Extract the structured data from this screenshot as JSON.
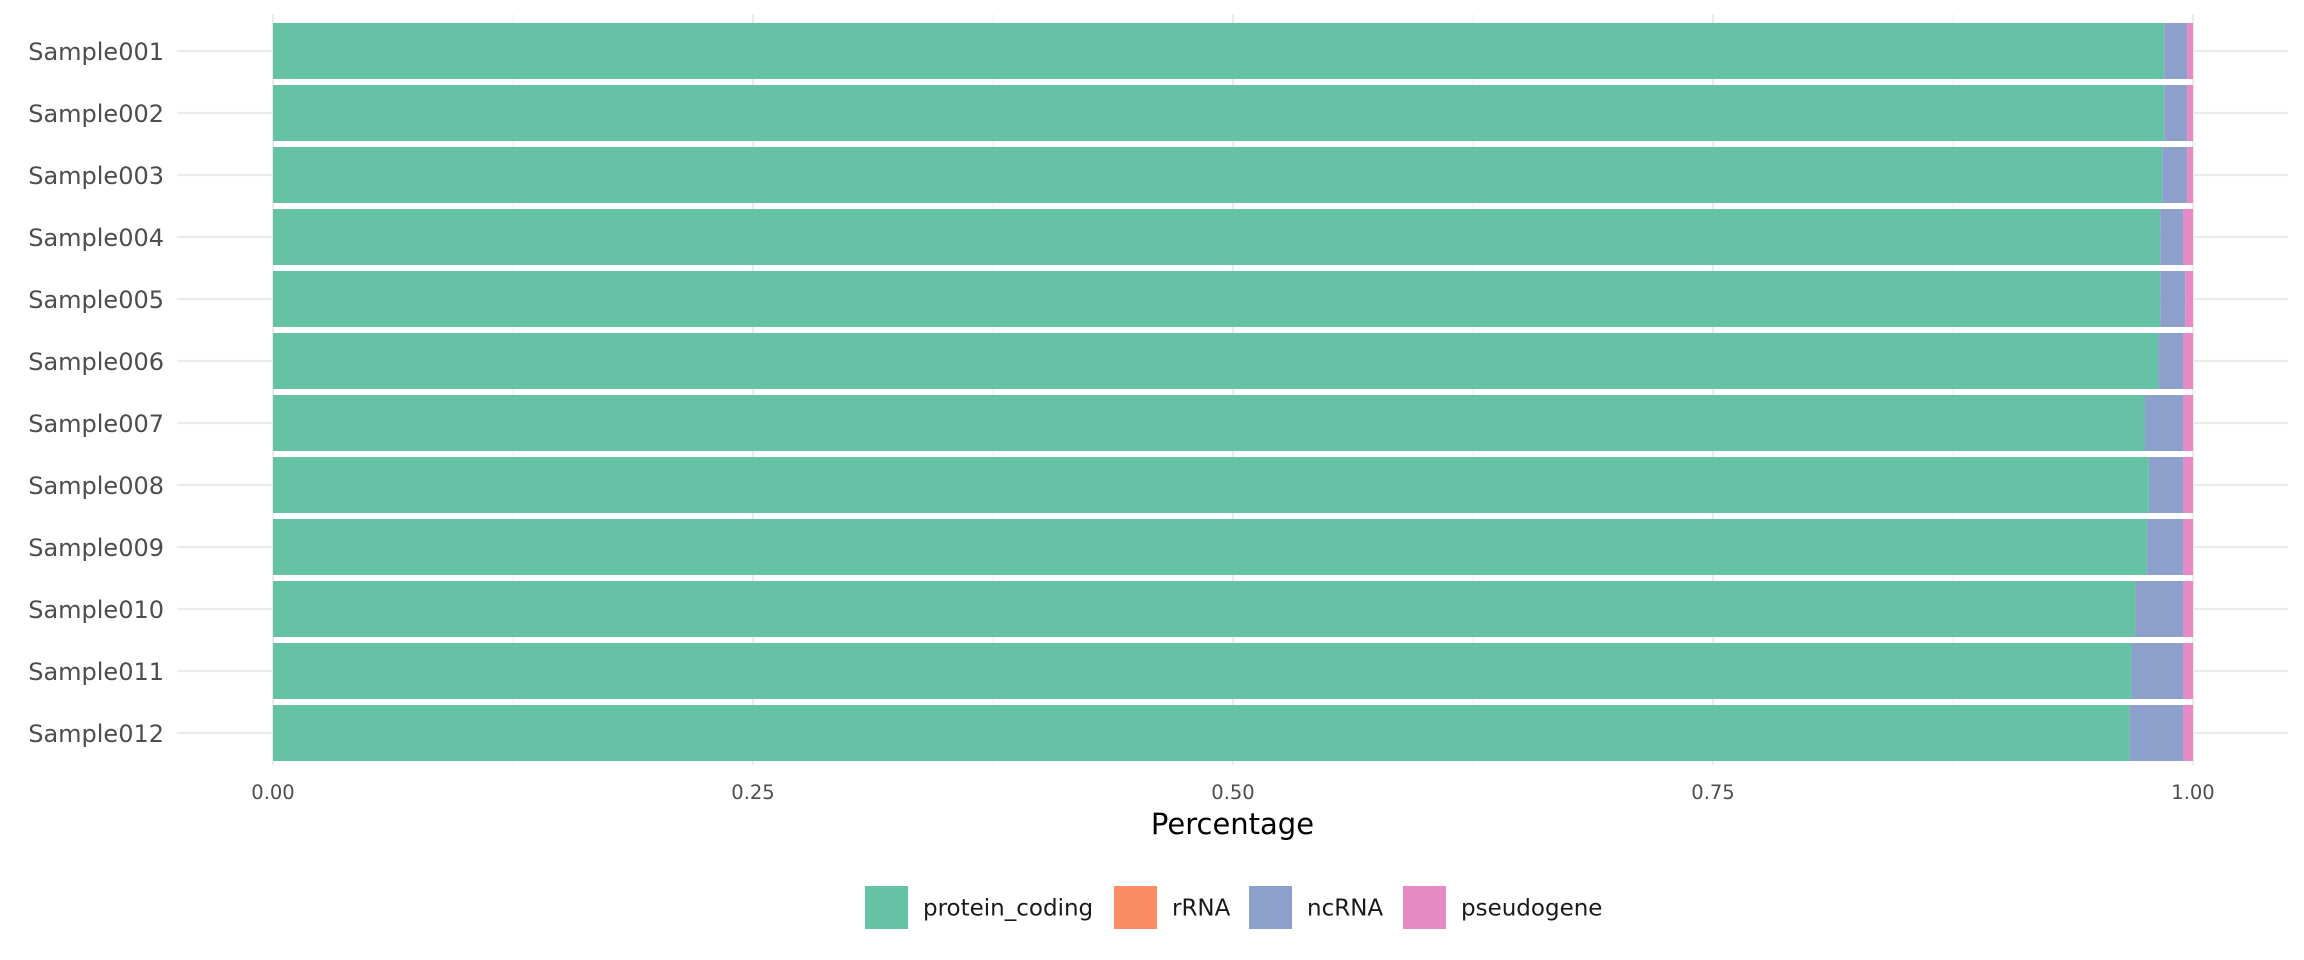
{
  "chart_data": {
    "type": "bar",
    "orientation": "horizontal",
    "stacked": true,
    "title": "",
    "xlabel": "Percentage",
    "ylabel": "",
    "xlim": [
      0,
      1
    ],
    "x_ticks": [
      "0.00",
      "0.25",
      "0.50",
      "0.75",
      "1.00"
    ],
    "grid": true,
    "legend_position": "bottom",
    "categories": [
      "Sample001",
      "Sample002",
      "Sample003",
      "Sample004",
      "Sample005",
      "Sample006",
      "Sample007",
      "Sample008",
      "Sample009",
      "Sample010",
      "Sample011",
      "Sample012"
    ],
    "series": [
      {
        "name": "protein_coding",
        "color": "#66c2a5",
        "values": [
          0.985,
          0.985,
          0.984,
          0.983,
          0.983,
          0.982,
          0.975,
          0.977,
          0.976,
          0.97,
          0.968,
          0.967
        ]
      },
      {
        "name": "rRNA",
        "color": "#fc8d62",
        "values": [
          0,
          0,
          0,
          0,
          0,
          0,
          0,
          0,
          0,
          0,
          0,
          0
        ]
      },
      {
        "name": "ncRNA",
        "color": "#8da0cb",
        "values": [
          0.012,
          0.012,
          0.013,
          0.012,
          0.013,
          0.013,
          0.02,
          0.018,
          0.019,
          0.025,
          0.027,
          0.028
        ]
      },
      {
        "name": "pseudogene",
        "color": "#e78ac3",
        "values": [
          0.003,
          0.003,
          0.003,
          0.005,
          0.004,
          0.005,
          0.005,
          0.005,
          0.005,
          0.005,
          0.005,
          0.005
        ]
      }
    ]
  }
}
